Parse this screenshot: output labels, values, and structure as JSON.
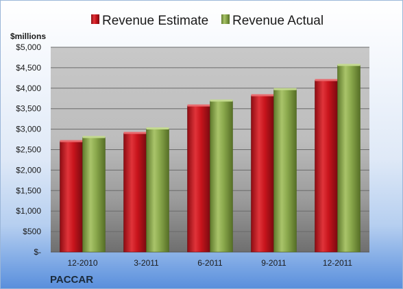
{
  "chart_data": {
    "type": "bar",
    "title": "",
    "ylabel": "$millions",
    "xlabel": "",
    "company": "PACCAR",
    "categories": [
      "12-2010",
      "3-2011",
      "6-2011",
      "9-2011",
      "12-2011"
    ],
    "series": [
      {
        "name": "Revenue Estimate",
        "values": [
          2700,
          2900,
          3570,
          3820,
          4190
        ],
        "color": "#c0141c"
      },
      {
        "name": "Revenue Actual",
        "values": [
          2800,
          3010,
          3690,
          3970,
          4560
        ],
        "color": "#8aa84c"
      }
    ],
    "ylim": [
      0,
      5000
    ],
    "yticks": [
      0,
      500,
      1000,
      1500,
      2000,
      2500,
      3000,
      3500,
      4000,
      4500,
      5000
    ],
    "ytick_labels": [
      "$-",
      "$500",
      "$1,000",
      "$1,500",
      "$2,000",
      "$2,500",
      "$3,000",
      "$3,500",
      "$4,000",
      "$4,500",
      "$5,000"
    ],
    "grid": true,
    "legend_position": "top"
  }
}
